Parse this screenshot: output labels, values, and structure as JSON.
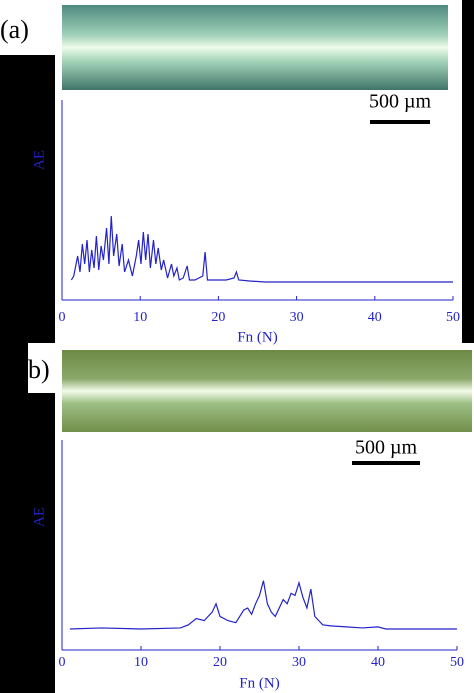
{
  "chart_data": [
    {
      "type": "line",
      "panel_label": "(a)",
      "scale_bar_label": "500 µm",
      "x_label": "Fn (N)",
      "y_label": "AE",
      "xlim": [
        0,
        50
      ],
      "xticks": [
        0,
        10,
        20,
        30,
        40,
        50
      ],
      "ylim": [
        0,
        100
      ],
      "color": "#2323c8",
      "x": [
        1.2,
        1.5,
        2,
        2.3,
        2.6,
        2.9,
        3.2,
        3.5,
        3.8,
        4.1,
        4.4,
        4.7,
        5,
        5.3,
        5.7,
        6,
        6.3,
        6.6,
        7,
        7.3,
        7.7,
        8,
        8.5,
        9,
        9.5,
        9.8,
        10.1,
        10.4,
        10.7,
        11,
        11.3,
        11.7,
        12,
        12.3,
        12.7,
        13,
        13.5,
        14,
        14.3,
        14.7,
        15,
        15.5,
        16,
        16.3,
        17,
        18,
        18.3,
        18.6,
        19.5,
        21,
        22,
        22.3,
        22.6,
        24,
        26,
        30,
        35,
        40,
        45,
        50
      ],
      "values": [
        10,
        12,
        22,
        14,
        28,
        18,
        30,
        14,
        25,
        16,
        32,
        15,
        27,
        20,
        36,
        18,
        42,
        22,
        33,
        17,
        28,
        14,
        20,
        12,
        22,
        30,
        18,
        34,
        20,
        33,
        16,
        30,
        18,
        26,
        15,
        20,
        11,
        18,
        12,
        16,
        10,
        11,
        17,
        10,
        10,
        12,
        24,
        10,
        10,
        10,
        11,
        14,
        10,
        9.5,
        9,
        9,
        9,
        9,
        9,
        9
      ]
    },
    {
      "type": "line",
      "panel_label": "b)",
      "scale_bar_label": "500 µm",
      "x_label": "Fn (N)",
      "y_label": "AE",
      "xlim": [
        0,
        50
      ],
      "xticks": [
        0,
        10,
        20,
        30,
        40,
        50
      ],
      "ylim": [
        0,
        100
      ],
      "color": "#2323c8",
      "x": [
        1,
        5,
        10,
        15,
        16,
        17,
        18,
        19,
        19.5,
        20,
        21,
        22,
        23,
        23.5,
        24,
        24.5,
        25,
        25.5,
        26,
        26.5,
        27,
        27.5,
        28,
        28.5,
        29,
        29.5,
        30,
        30.5,
        31,
        31.5,
        32,
        32.5,
        33,
        34,
        36,
        38,
        40,
        41,
        45,
        50
      ],
      "values": [
        10,
        10.5,
        10,
        10.5,
        12,
        15,
        14,
        18,
        22,
        16,
        14,
        13,
        19,
        20,
        17,
        22,
        26,
        33,
        22,
        18,
        16,
        20,
        24,
        22,
        27,
        26,
        32,
        25,
        20,
        29,
        16,
        14,
        12,
        11.5,
        11,
        10.5,
        11,
        10,
        10,
        10
      ]
    }
  ]
}
